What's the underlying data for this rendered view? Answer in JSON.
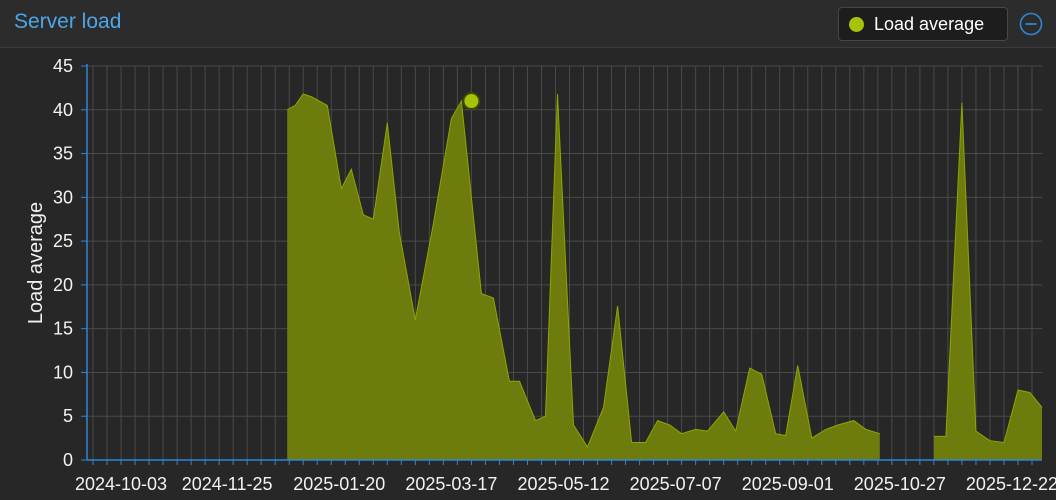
{
  "panel": {
    "title": "Server load",
    "legend_label": "Load average",
    "collapse_icon": "minus-circle-icon"
  },
  "colors": {
    "accent": "#4da6e8",
    "series_fill": "#6d7c0c",
    "series_line": "#8fa600",
    "marker": "#a8c20a",
    "grid": "#4a4a4a",
    "axis": "#2e86d6"
  },
  "chart_data": {
    "type": "area",
    "title": "",
    "xlabel": "",
    "ylabel": "Load average",
    "ylim": [
      0,
      45
    ],
    "yticks": [
      0,
      5,
      10,
      15,
      20,
      25,
      30,
      35,
      40,
      45
    ],
    "xlim": [
      "2024-09-16",
      "2026-01-06"
    ],
    "xticks": [
      "2024-10-03",
      "2024-11-25",
      "2025-01-20",
      "2025-03-17",
      "2025-05-12",
      "2025-07-07",
      "2025-09-01",
      "2025-10-27",
      "2025-12-22"
    ],
    "grid": true,
    "legend": "top-right",
    "highlighted_point": {
      "x": "2025-03-27",
      "y": 41
    },
    "series": [
      {
        "name": "Load average",
        "segments": [
          [
            [
              "2024-12-25",
              40
            ],
            [
              "2024-12-29",
              40.5
            ],
            [
              "2025-01-02",
              41.8
            ],
            [
              "2025-01-06",
              41.5
            ],
            [
              "2025-01-10",
              41
            ],
            [
              "2025-01-14",
              40.5
            ],
            [
              "2025-01-21",
              31
            ],
            [
              "2025-01-26",
              33.2
            ],
            [
              "2025-02-01",
              28
            ],
            [
              "2025-02-06",
              27.5
            ],
            [
              "2025-02-13",
              38.5
            ],
            [
              "2025-02-19",
              26
            ],
            [
              "2025-02-27",
              16
            ],
            [
              "2025-03-08",
              27
            ],
            [
              "2025-03-17",
              39
            ],
            [
              "2025-03-22",
              41
            ],
            [
              "2025-04-01",
              19
            ],
            [
              "2025-04-07",
              18.5
            ],
            [
              "2025-04-15",
              9
            ],
            [
              "2025-04-20",
              9
            ],
            [
              "2025-04-28",
              4.5
            ],
            [
              "2025-05-03",
              5
            ],
            [
              "2025-05-09",
              41.8
            ],
            [
              "2025-05-17",
              4
            ],
            [
              "2025-05-24",
              1.5
            ],
            [
              "2025-06-01",
              6
            ],
            [
              "2025-06-08",
              17.6
            ],
            [
              "2025-06-15",
              2
            ],
            [
              "2025-06-22",
              2
            ],
            [
              "2025-06-28",
              4.5
            ],
            [
              "2025-07-04",
              4
            ],
            [
              "2025-07-10",
              3
            ],
            [
              "2025-07-17",
              3.5
            ],
            [
              "2025-07-23",
              3.3
            ],
            [
              "2025-07-31",
              5.5
            ],
            [
              "2025-08-06",
              3.3
            ],
            [
              "2025-08-13",
              10.5
            ],
            [
              "2025-08-19",
              9.8
            ],
            [
              "2025-08-26",
              3
            ],
            [
              "2025-08-31",
              2.8
            ],
            [
              "2025-09-06",
              10.8
            ],
            [
              "2025-09-13",
              2.5
            ],
            [
              "2025-09-20",
              3.5
            ],
            [
              "2025-09-26",
              4
            ],
            [
              "2025-10-04",
              4.5
            ],
            [
              "2025-10-10",
              3.5
            ],
            [
              "2025-10-17",
              3
            ]
          ],
          [
            [
              "2025-11-13",
              2.7
            ],
            [
              "2025-11-19",
              2.7
            ],
            [
              "2025-11-27",
              40.8
            ],
            [
              "2025-12-04",
              3.3
            ],
            [
              "2025-12-11",
              2.2
            ],
            [
              "2025-12-18",
              2
            ],
            [
              "2025-12-25",
              8
            ],
            [
              "2025-12-31",
              7.7
            ],
            [
              "2026-01-06",
              6
            ]
          ]
        ]
      }
    ]
  }
}
